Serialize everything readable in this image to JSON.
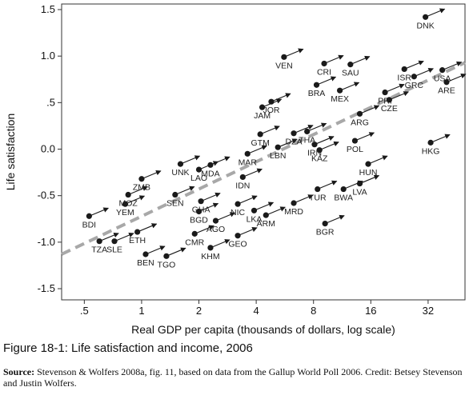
{
  "figure": {
    "caption": "Figure 18-1: Life satisfaction and income, 2006",
    "source_label": "Source:",
    "source_text": "Stevenson & Wolfers 2008a, fig. 11, based on data from the Gallup World Poll 2006. Credit: Betsey Stevenson and Justin Wolfers."
  },
  "chart_data": {
    "type": "scatter",
    "xlabel": "Real GDP per capita (thousands of dollars, log scale)",
    "ylabel": "Life satisfaction",
    "x_scale": "log2",
    "xlim": [
      0.38,
      50
    ],
    "ylim": [
      -1.62,
      1.56
    ],
    "x_ticks": [
      {
        "value": 0.5,
        "label": ".5"
      },
      {
        "value": 1,
        "label": "1"
      },
      {
        "value": 2,
        "label": "2"
      },
      {
        "value": 4,
        "label": "4"
      },
      {
        "value": 8,
        "label": "8"
      },
      {
        "value": 16,
        "label": "16"
      },
      {
        "value": 32,
        "label": "32"
      }
    ],
    "y_ticks": [
      {
        "value": 1.5,
        "label": "1.5"
      },
      {
        "value": 1.0,
        "label": "1.0"
      },
      {
        "value": 0.5,
        "label": ".5"
      },
      {
        "value": 0.0,
        "label": "0.0"
      },
      {
        "value": -0.5,
        "label": "-0.5"
      },
      {
        "value": -1.0,
        "label": "-1.0"
      },
      {
        "value": -1.5,
        "label": "-1.5"
      }
    ],
    "grid": false,
    "fit_line": {
      "style": "dashed",
      "color": "#a8a8a8",
      "from": [
        0.38,
        -1.13
      ],
      "to": [
        50,
        0.93
      ]
    },
    "marker_color": "#1a1a1a",
    "arrow_color": "#1a1a1a",
    "points": [
      {
        "label": "DNK",
        "x": 31,
        "y": 1.42
      },
      {
        "label": "VEN",
        "x": 5.6,
        "y": 0.99
      },
      {
        "label": "CRI",
        "x": 9.1,
        "y": 0.92
      },
      {
        "label": "SAU",
        "x": 12.5,
        "y": 0.91
      },
      {
        "label": "BRA",
        "x": 8.3,
        "y": 0.69
      },
      {
        "label": "MEX",
        "x": 11.0,
        "y": 0.63
      },
      {
        "label": "ARE",
        "x": 40,
        "y": 0.72
      },
      {
        "label": "ISR",
        "x": 24,
        "y": 0.86
      },
      {
        "label": "GRC",
        "x": 27,
        "y": 0.78
      },
      {
        "label": "USA",
        "x": 38,
        "y": 0.85
      },
      {
        "label": "PRI",
        "x": 19,
        "y": 0.61
      },
      {
        "label": "CZE",
        "x": 20,
        "y": 0.53
      },
      {
        "label": "JAM",
        "x": 4.3,
        "y": 0.45
      },
      {
        "label": "JOR",
        "x": 4.8,
        "y": 0.51
      },
      {
        "label": "ARG",
        "x": 14,
        "y": 0.38
      },
      {
        "label": "GTM",
        "x": 4.2,
        "y": 0.16
      },
      {
        "label": "DZA",
        "x": 6.3,
        "y": 0.17
      },
      {
        "label": "THA",
        "x": 7.4,
        "y": 0.19
      },
      {
        "label": "LBN",
        "x": 5.2,
        "y": 0.02
      },
      {
        "label": "IRN",
        "x": 8.1,
        "y": 0.05
      },
      {
        "label": "KAZ",
        "x": 8.6,
        "y": -0.01
      },
      {
        "label": "POL",
        "x": 13.2,
        "y": 0.09
      },
      {
        "label": "HKG",
        "x": 33,
        "y": 0.07
      },
      {
        "label": "MAR",
        "x": 3.6,
        "y": -0.05
      },
      {
        "label": "UNK",
        "x": 1.6,
        "y": -0.16
      },
      {
        "label": "LAO",
        "x": 2.0,
        "y": -0.22
      },
      {
        "label": "MDA",
        "x": 2.3,
        "y": -0.17
      },
      {
        "label": "IDN",
        "x": 3.4,
        "y": -0.3
      },
      {
        "label": "HUN",
        "x": 15.5,
        "y": -0.16
      },
      {
        "label": "ZMB",
        "x": 1.0,
        "y": -0.32
      },
      {
        "label": "MOZ",
        "x": 0.85,
        "y": -0.49
      },
      {
        "label": "SEN",
        "x": 1.5,
        "y": -0.49
      },
      {
        "label": "GHA",
        "x": 2.05,
        "y": -0.56
      },
      {
        "label": "YEM",
        "x": 0.82,
        "y": -0.59
      },
      {
        "label": "BGD",
        "x": 2.0,
        "y": -0.67
      },
      {
        "label": "NIC",
        "x": 3.2,
        "y": -0.59
      },
      {
        "label": "LKA",
        "x": 3.9,
        "y": -0.66
      },
      {
        "label": "ARM",
        "x": 4.5,
        "y": -0.71
      },
      {
        "label": "MRD",
        "x": 6.3,
        "y": -0.58
      },
      {
        "label": "TUR",
        "x": 8.4,
        "y": -0.43
      },
      {
        "label": "BWA",
        "x": 11.5,
        "y": -0.43
      },
      {
        "label": "LVA",
        "x": 14.0,
        "y": -0.37
      },
      {
        "label": "AGO",
        "x": 2.45,
        "y": -0.77
      },
      {
        "label": "BDI",
        "x": 0.53,
        "y": -0.72
      },
      {
        "label": "ETH",
        "x": 0.95,
        "y": -0.89
      },
      {
        "label": "CMR",
        "x": 1.9,
        "y": -0.91
      },
      {
        "label": "GEO",
        "x": 3.2,
        "y": -0.93
      },
      {
        "label": "KHM",
        "x": 2.3,
        "y": -1.06
      },
      {
        "label": "BGR",
        "x": 9.2,
        "y": -0.8
      },
      {
        "label": "TZA",
        "x": 0.6,
        "y": -0.99
      },
      {
        "label": "SLE",
        "x": 0.72,
        "y": -0.99
      },
      {
        "label": "BEN",
        "x": 1.05,
        "y": -1.13
      },
      {
        "label": "TGO",
        "x": 1.35,
        "y": -1.15
      }
    ]
  }
}
